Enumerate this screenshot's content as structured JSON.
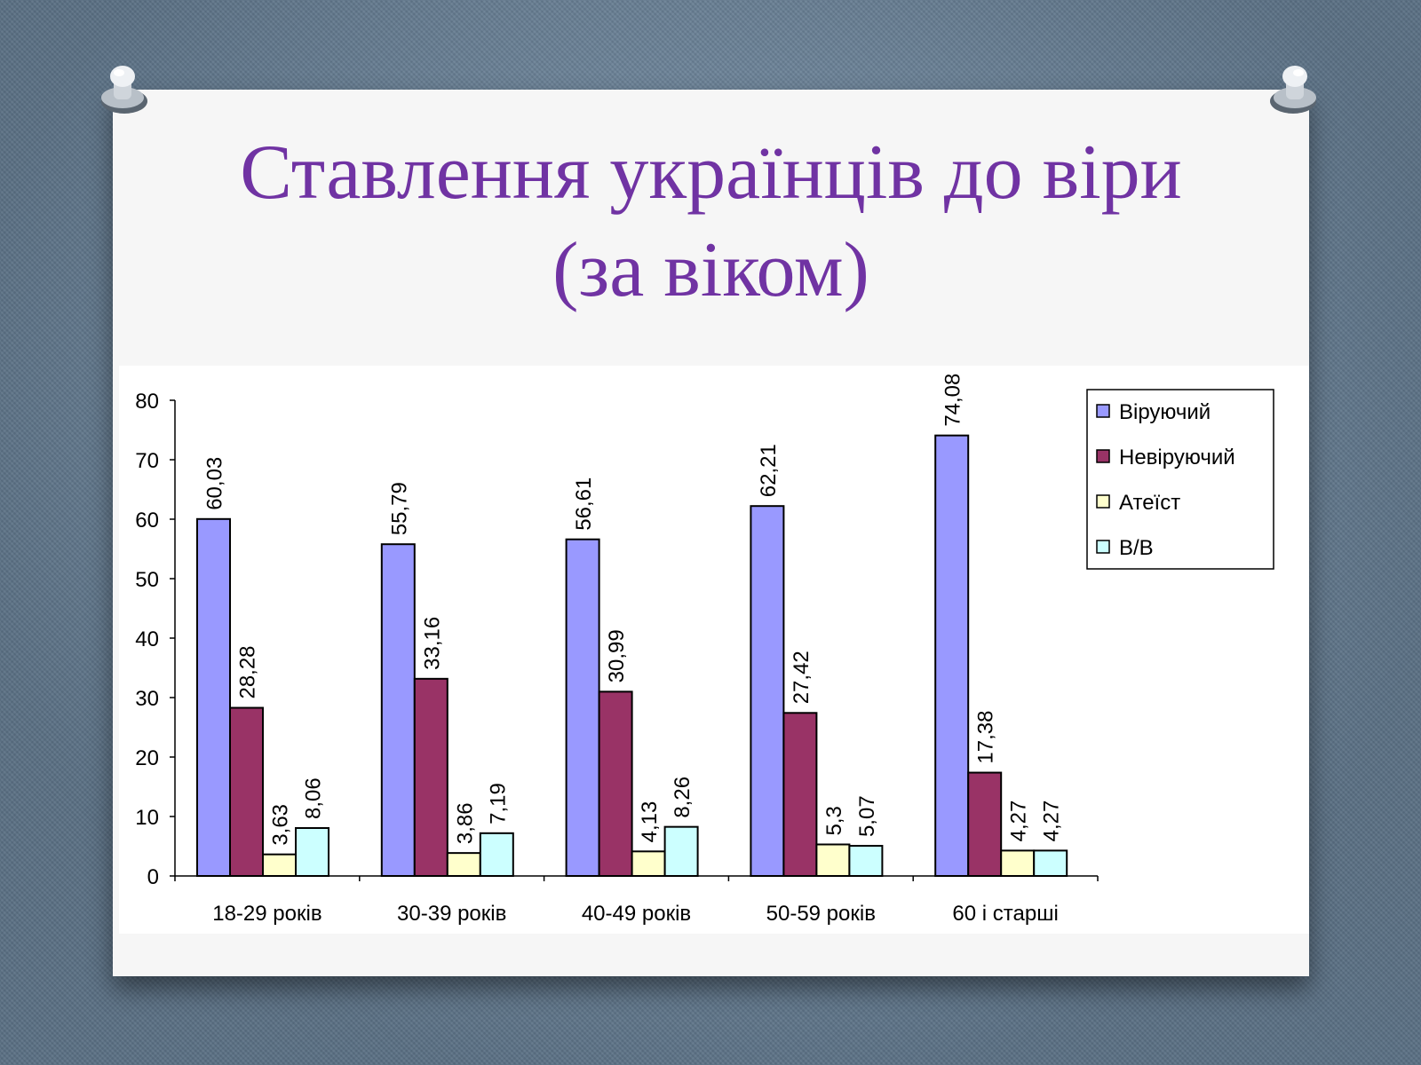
{
  "slide": {
    "title_line1": "Ставлення українців до віри",
    "title_line2": "(за віком)"
  },
  "colors": {
    "title": "#7033a3",
    "background": "#6f8aa3",
    "card": "#f6f6f6"
  },
  "chart_data": {
    "type": "bar",
    "categories": [
      "18-29 років",
      "30-39 років",
      "40-49 років",
      "50-59 років",
      "60 і старші"
    ],
    "series": [
      {
        "name": "Віруючий",
        "color": "#9999ff",
        "values": [
          60.03,
          55.79,
          56.61,
          62.21,
          74.08
        ],
        "labels": [
          "60,03",
          "55,79",
          "56,61",
          "62,21",
          "74,08"
        ]
      },
      {
        "name": "Невіруючий",
        "color": "#993366",
        "values": [
          28.28,
          33.16,
          30.99,
          27.42,
          17.38
        ],
        "labels": [
          "28,28",
          "33,16",
          "30,99",
          "27,42",
          "17,38"
        ]
      },
      {
        "name": "Атеїст",
        "color": "#ffffcc",
        "values": [
          3.63,
          3.86,
          4.13,
          5.3,
          4.27
        ],
        "labels": [
          "3,63",
          "3,86",
          "4,13",
          "5,3",
          "4,27"
        ]
      },
      {
        "name": "В/В",
        "color": "#ccffff",
        "values": [
          8.06,
          7.19,
          8.26,
          5.07,
          4.27
        ],
        "labels": [
          "8,06",
          "7,19",
          "8,26",
          "5,07",
          "4,27"
        ]
      }
    ],
    "ylim": [
      0,
      80
    ],
    "yticks": [
      0,
      10,
      20,
      30,
      40,
      50,
      60,
      70,
      80
    ],
    "legend_position": "top-right",
    "grid": false,
    "data_labels": "rotated above bars"
  }
}
